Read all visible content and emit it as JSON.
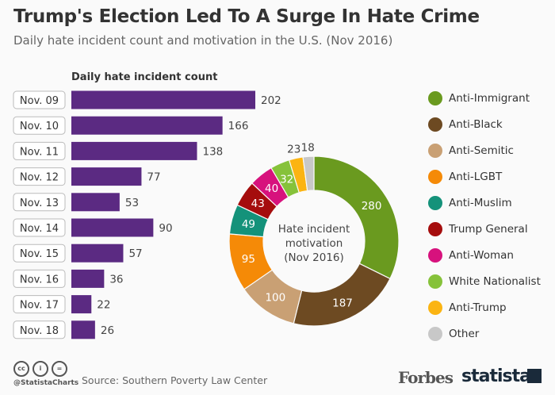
{
  "title": "Trump's Election Led To A Surge In Hate Crime",
  "subtitle": "Daily hate incident count and motivation in the U.S. (Nov 2016)",
  "chart_data": [
    {
      "type": "bar",
      "orientation": "horizontal",
      "title": "Daily hate incident count",
      "categories": [
        "Nov. 09",
        "Nov. 10",
        "Nov. 11",
        "Nov. 12",
        "Nov. 13",
        "Nov. 14",
        "Nov. 15",
        "Nov. 16",
        "Nov. 17",
        "Nov. 18"
      ],
      "values": [
        202,
        166,
        138,
        77,
        53,
        90,
        57,
        36,
        22,
        26
      ],
      "color": "#5b2a82"
    },
    {
      "type": "pie",
      "donut": true,
      "center_label": [
        "Hate incident",
        "motivation",
        "(Nov 2016)"
      ],
      "legend_position": "right",
      "slices": [
        {
          "name": "Anti-Immigrant",
          "value": 280,
          "color": "#6a9a1f"
        },
        {
          "name": "Anti-Black",
          "value": 187,
          "color": "#6d4a22"
        },
        {
          "name": "Anti-Semitic",
          "value": 100,
          "color": "#c9a074"
        },
        {
          "name": "Anti-LGBT",
          "value": 95,
          "color": "#f58a07"
        },
        {
          "name": "Anti-Muslim",
          "value": 49,
          "color": "#14927a"
        },
        {
          "name": "Trump General",
          "value": 43,
          "color": "#a50d0d"
        },
        {
          "name": "Anti-Woman",
          "value": 40,
          "color": "#d7127d"
        },
        {
          "name": "White Nationalist",
          "value": 32,
          "color": "#86c23a"
        },
        {
          "name": "Anti-Trump",
          "value": 23,
          "color": "#fbb412"
        },
        {
          "name": "Other",
          "value": 18,
          "color": "#c8c8c8"
        }
      ]
    }
  ],
  "footer": {
    "handle": "@StatistaCharts",
    "source": "Source: Southern Poverty Law Center",
    "logos": [
      "Forbes",
      "statista"
    ]
  }
}
